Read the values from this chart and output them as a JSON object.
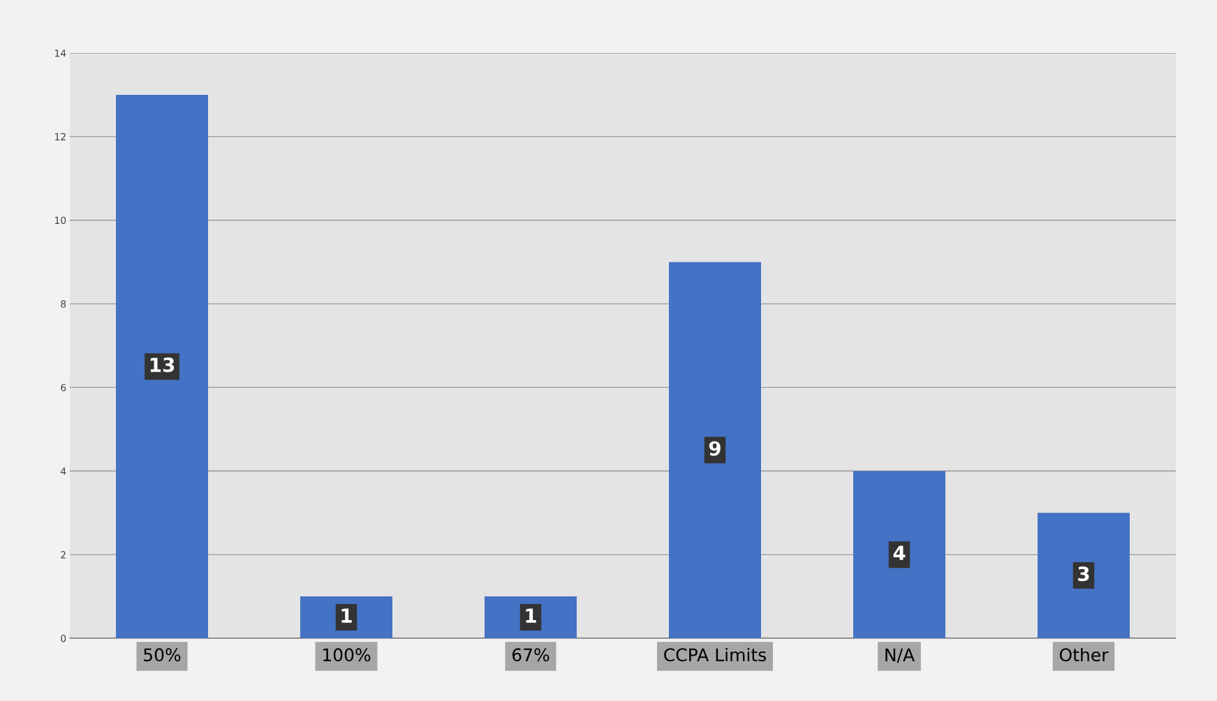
{
  "chart_data": {
    "type": "bar",
    "categories": [
      "50%",
      "100%",
      "67%",
      "CCPA Limits",
      "N/A",
      "Other"
    ],
    "values": [
      13,
      1,
      1,
      9,
      4,
      3
    ],
    "color": "#4472c4",
    "ylim": [
      0,
      14
    ],
    "yticks": [
      0,
      2,
      4,
      6,
      8,
      10,
      12,
      14
    ],
    "grid": "y",
    "data_labels": true,
    "legend": false
  }
}
